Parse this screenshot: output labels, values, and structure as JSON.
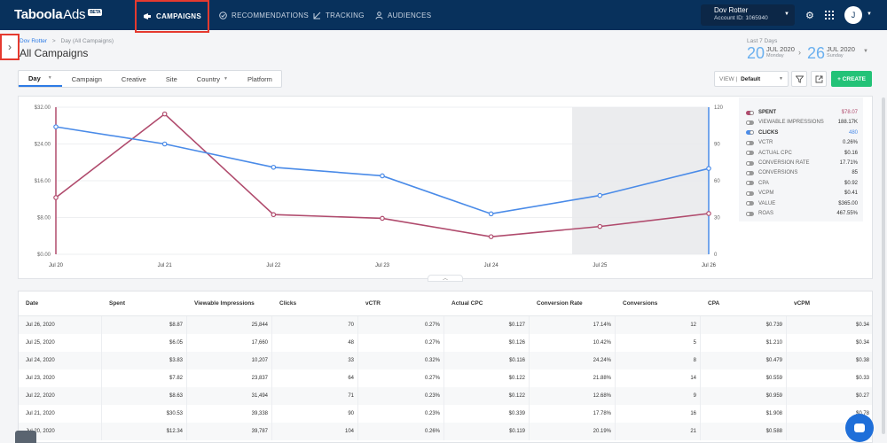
{
  "brand": {
    "name": "Taboola",
    "product": "Ads",
    "badge": "BETA"
  },
  "nav": {
    "campaigns": "CAMPAIGNS",
    "recommendations": "RECOMMENDATIONS",
    "tracking": "TRACKING",
    "audiences": "AUDIENCES"
  },
  "account": {
    "name": "Dov Rotter",
    "id": "Account ID: 1065940",
    "avatar": "J"
  },
  "breadcrumb": {
    "root": "Dov Rotter",
    "sep": ">",
    "current": "Day (All Campaigns)"
  },
  "page_title": "All Campaigns",
  "date_range": {
    "label": "Last 7 Days",
    "start": {
      "day": "20",
      "month": "JUL 2020",
      "weekday": "Monday"
    },
    "end": {
      "day": "26",
      "month": "JUL 2020",
      "weekday": "Sunday"
    },
    "arrow": "›"
  },
  "tabs": [
    {
      "label": "Day"
    },
    {
      "label": "Campaign"
    },
    {
      "label": "Creative"
    },
    {
      "label": "Site"
    },
    {
      "label": "Country"
    },
    {
      "label": "Platform"
    }
  ],
  "view": {
    "label": "VIEW |",
    "value": "Default"
  },
  "create_label": "+ CREATE",
  "legend": [
    {
      "label": "SPENT",
      "value": "$78.07",
      "on": true,
      "color": "#b04b6d"
    },
    {
      "label": "VIEWABLE IMPRESSIONS",
      "value": "188.17K",
      "on": false
    },
    {
      "label": "CLICKS",
      "value": "480",
      "on": true,
      "color": "#4a8be8"
    },
    {
      "label": "VCTR",
      "value": "0.26%",
      "on": false
    },
    {
      "label": "ACTUAL CPC",
      "value": "$0.16",
      "on": false
    },
    {
      "label": "CONVERSION RATE",
      "value": "17.71%",
      "on": false
    },
    {
      "label": "CONVERSIONS",
      "value": "85",
      "on": false
    },
    {
      "label": "CPA",
      "value": "$0.92",
      "on": false
    },
    {
      "label": "VCPM",
      "value": "$0.41",
      "on": false
    },
    {
      "label": "VALUE",
      "value": "$365.00",
      "on": false
    },
    {
      "label": "ROAS",
      "value": "467.55%",
      "on": false
    }
  ],
  "chart_data": {
    "type": "line",
    "categories": [
      "Jul 20",
      "Jul 21",
      "Jul 22",
      "Jul 23",
      "Jul 24",
      "Jul 25",
      "Jul 26"
    ],
    "series": [
      {
        "name": "SPENT",
        "axis": "left",
        "color": "#b04b6d",
        "values": [
          12.34,
          30.53,
          8.63,
          7.82,
          3.83,
          6.05,
          8.87
        ]
      },
      {
        "name": "CLICKS",
        "axis": "right",
        "color": "#4a8be8",
        "values": [
          104,
          90,
          71,
          64,
          33,
          48,
          70
        ]
      }
    ],
    "y_left": {
      "ticks": [
        "$0.00",
        "$8.00",
        "$16.00",
        "$24.00",
        "$32.00"
      ],
      "lim": [
        0,
        32
      ]
    },
    "y_right": {
      "ticks": [
        "0",
        "30",
        "60",
        "90",
        "120"
      ],
      "lim": [
        0,
        120
      ]
    },
    "shaded_from": "Jul 25",
    "grid": true
  },
  "table": {
    "headers": [
      "Date",
      "Spent",
      "Viewable Impressions",
      "Clicks",
      "vCTR",
      "Actual CPC",
      "Conversion Rate",
      "Conversions",
      "CPA",
      "vCPM"
    ],
    "rows": [
      [
        "Jul 26, 2020",
        "$8.87",
        "25,844",
        "70",
        "0.27%",
        "$0.127",
        "17.14%",
        "12",
        "$0.739",
        "$0.34"
      ],
      [
        "Jul 25, 2020",
        "$6.05",
        "17,660",
        "48",
        "0.27%",
        "$0.126",
        "10.42%",
        "5",
        "$1.210",
        "$0.34"
      ],
      [
        "Jul 24, 2020",
        "$3.83",
        "10,207",
        "33",
        "0.32%",
        "$0.116",
        "24.24%",
        "8",
        "$0.479",
        "$0.38"
      ],
      [
        "Jul 23, 2020",
        "$7.82",
        "23,837",
        "64",
        "0.27%",
        "$0.122",
        "21.88%",
        "14",
        "$0.559",
        "$0.33"
      ],
      [
        "Jul 22, 2020",
        "$8.63",
        "31,494",
        "71",
        "0.23%",
        "$0.122",
        "12.68%",
        "9",
        "$0.959",
        "$0.27"
      ],
      [
        "Jul 21, 2020",
        "$30.53",
        "39,338",
        "90",
        "0.23%",
        "$0.339",
        "17.78%",
        "16",
        "$1.908",
        "$0.78"
      ],
      [
        "Jul 20, 2020",
        "$12.34",
        "39,787",
        "104",
        "0.26%",
        "$0.119",
        "20.19%",
        "21",
        "$0.588",
        "$0.31"
      ]
    ]
  }
}
